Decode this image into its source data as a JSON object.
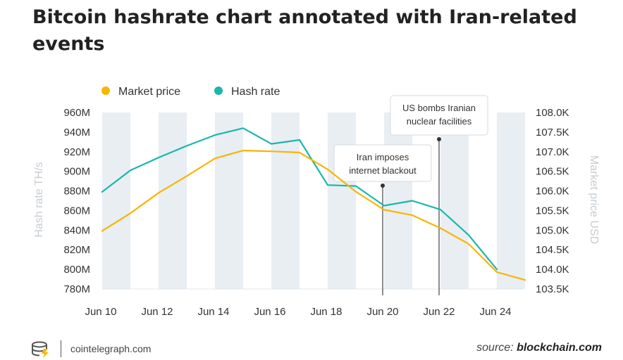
{
  "header": {
    "title": "Bitcoin hashrate chart annotated with Iran-related events"
  },
  "footer": {
    "brand": "cointelegraph.com",
    "source_label": "source:",
    "source_name": "blockchain.com"
  },
  "colors": {
    "price": "#f7b500",
    "hash": "#1ab7ac",
    "band": "#e9eef3"
  },
  "chart_data": {
    "type": "line",
    "x": [
      "Jun 10",
      "Jun 11",
      "Jun 12",
      "Jun 13",
      "Jun 14",
      "Jun 15",
      "Jun 16",
      "Jun 17",
      "Jun 18",
      "Jun 19",
      "Jun 20",
      "Jun 21",
      "Jun 22",
      "Jun 23",
      "Jun 24",
      "Jun 25"
    ],
    "x_tick_labels": [
      "Jun 10",
      "Jun 12",
      "Jun 14",
      "Jun 16",
      "Jun 18",
      "Jun 20",
      "Jun 22",
      "Jun 24"
    ],
    "series": [
      {
        "name": "Market price",
        "axis": "right",
        "values": [
          104.98,
          105.43,
          105.95,
          106.38,
          106.83,
          107.03,
          107.01,
          106.98,
          106.55,
          105.98,
          105.52,
          105.38,
          105.05,
          104.65,
          103.93,
          103.73
        ]
      },
      {
        "name": "Hash rate",
        "axis": "left",
        "values": [
          879,
          901,
          914,
          926,
          937,
          944,
          928,
          932,
          886,
          885,
          865,
          870,
          861,
          835,
          800,
          null
        ]
      }
    ],
    "y_left": {
      "label": "Hash rate TH/s",
      "range": [
        780,
        960
      ],
      "ticks": [
        "780M",
        "800M",
        "820M",
        "840M",
        "860M",
        "880M",
        "900M",
        "920M",
        "940M",
        "960M"
      ]
    },
    "y_right": {
      "label": "Market price USD",
      "range": [
        103.5,
        108.0
      ],
      "ticks": [
        "103.5K",
        "104.0K",
        "104.5K",
        "105.0K",
        "105.5K",
        "106.0K",
        "106.5K",
        "107.0K",
        "107.5K",
        "108.0K"
      ]
    },
    "annotations": [
      {
        "x": "Jun 20",
        "lines": [
          "Iran imposes",
          "internet blackout"
        ]
      },
      {
        "x": "Jun 22",
        "lines": [
          "US bombs Iranian",
          "nuclear facilities"
        ]
      }
    ],
    "legend": "top-left",
    "grid": "alternating vertical bands"
  }
}
